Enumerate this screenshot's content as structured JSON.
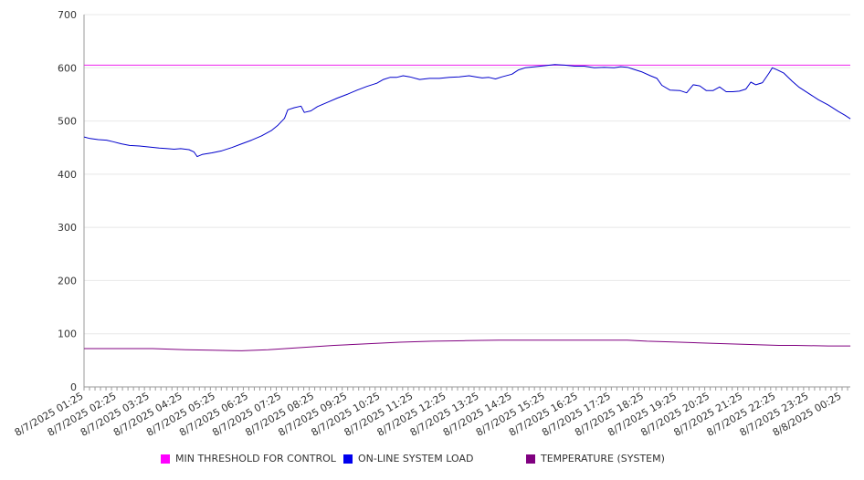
{
  "chart_data": {
    "type": "line",
    "ylim": [
      0,
      700
    ],
    "yticks": [
      0,
      100,
      200,
      300,
      400,
      500,
      600,
      700
    ],
    "grid": true,
    "legend_position": "bottom",
    "x_tick_labels": [
      "8/7/2025 01:25",
      "8/7/2025 02:25",
      "8/7/2025 03:25",
      "8/7/2025 04:25",
      "8/7/2025 05:25",
      "8/7/2025 06:25",
      "8/7/2025 07:25",
      "8/7/2025 08:25",
      "8/7/2025 09:25",
      "8/7/2025 10:25",
      "8/7/2025 11:25",
      "8/7/2025 12:25",
      "8/7/2025 13:25",
      "8/7/2025 14:25",
      "8/7/2025 15:25",
      "8/7/2025 16:25",
      "8/7/2025 17:25",
      "8/7/2025 18:25",
      "8/7/2025 19:25",
      "8/7/2025 20:25",
      "8/7/2025 21:25",
      "8/7/2025 22:25",
      "8/7/2025 23:25",
      "8/8/2025 00:25"
    ],
    "x_hours": [
      1.4167,
      24.6667
    ],
    "series": [
      {
        "name": "MIN THRESHOLD FOR CONTROL",
        "color": "#ee22ee",
        "legend_color": "#ff00ff",
        "points": [
          [
            1.4167,
            605
          ],
          [
            24.6667,
            605
          ]
        ]
      },
      {
        "name": "ON-LINE SYSTEM LOAD",
        "color": "#0000cc",
        "legend_color": "#0000ee",
        "points": [
          [
            1.42,
            470
          ],
          [
            1.6,
            467
          ],
          [
            1.85,
            465
          ],
          [
            2.1,
            464
          ],
          [
            2.3,
            461
          ],
          [
            2.55,
            457
          ],
          [
            2.8,
            454
          ],
          [
            3.1,
            453
          ],
          [
            3.4,
            451
          ],
          [
            3.7,
            449
          ],
          [
            3.95,
            448
          ],
          [
            4.15,
            447
          ],
          [
            4.35,
            448
          ],
          [
            4.6,
            446
          ],
          [
            4.75,
            442
          ],
          [
            4.85,
            433
          ],
          [
            5.0,
            437
          ],
          [
            5.3,
            440
          ],
          [
            5.6,
            444
          ],
          [
            5.9,
            450
          ],
          [
            6.2,
            457
          ],
          [
            6.5,
            464
          ],
          [
            6.8,
            472
          ],
          [
            7.1,
            482
          ],
          [
            7.3,
            492
          ],
          [
            7.5,
            505
          ],
          [
            7.6,
            521
          ],
          [
            7.8,
            525
          ],
          [
            8.0,
            528
          ],
          [
            8.1,
            516
          ],
          [
            8.3,
            519
          ],
          [
            8.5,
            527
          ],
          [
            8.8,
            535
          ],
          [
            9.1,
            543
          ],
          [
            9.4,
            550
          ],
          [
            9.7,
            558
          ],
          [
            10.0,
            565
          ],
          [
            10.3,
            571
          ],
          [
            10.5,
            578
          ],
          [
            10.7,
            582
          ],
          [
            10.9,
            582
          ],
          [
            11.1,
            585
          ],
          [
            11.3,
            583
          ],
          [
            11.6,
            578
          ],
          [
            11.9,
            580
          ],
          [
            12.2,
            580
          ],
          [
            12.5,
            582
          ],
          [
            12.8,
            583
          ],
          [
            13.1,
            585
          ],
          [
            13.3,
            583
          ],
          [
            13.5,
            581
          ],
          [
            13.7,
            582
          ],
          [
            13.9,
            579
          ],
          [
            14.1,
            583
          ],
          [
            14.4,
            588
          ],
          [
            14.6,
            596
          ],
          [
            14.8,
            600
          ],
          [
            15.1,
            602
          ],
          [
            15.4,
            604
          ],
          [
            15.7,
            606
          ],
          [
            16.0,
            605
          ],
          [
            16.3,
            603
          ],
          [
            16.6,
            603
          ],
          [
            16.9,
            600
          ],
          [
            17.2,
            601
          ],
          [
            17.5,
            600
          ],
          [
            17.7,
            602
          ],
          [
            17.9,
            601
          ],
          [
            18.1,
            597
          ],
          [
            18.35,
            592
          ],
          [
            18.6,
            585
          ],
          [
            18.8,
            580
          ],
          [
            18.95,
            567
          ],
          [
            19.2,
            558
          ],
          [
            19.5,
            557
          ],
          [
            19.7,
            553
          ],
          [
            19.9,
            568
          ],
          [
            20.1,
            566
          ],
          [
            20.3,
            557
          ],
          [
            20.5,
            557
          ],
          [
            20.7,
            564
          ],
          [
            20.9,
            555
          ],
          [
            21.1,
            555
          ],
          [
            21.3,
            556
          ],
          [
            21.5,
            560
          ],
          [
            21.65,
            573
          ],
          [
            21.8,
            568
          ],
          [
            22.0,
            572
          ],
          [
            22.2,
            590
          ],
          [
            22.3,
            600
          ],
          [
            22.45,
            596
          ],
          [
            22.65,
            590
          ],
          [
            22.9,
            575
          ],
          [
            23.1,
            564
          ],
          [
            23.4,
            552
          ],
          [
            23.7,
            540
          ],
          [
            24.0,
            530
          ],
          [
            24.3,
            518
          ],
          [
            24.5,
            511
          ],
          [
            24.67,
            504
          ]
        ]
      },
      {
        "name": "TEMPERATURE (SYSTEM)",
        "color": "#800080",
        "legend_color": "#800080",
        "points": [
          [
            1.42,
            72
          ],
          [
            2.5,
            72
          ],
          [
            3.5,
            72
          ],
          [
            4.5,
            70
          ],
          [
            5.3,
            69
          ],
          [
            6.2,
            68
          ],
          [
            7.0,
            70
          ],
          [
            8.0,
            74
          ],
          [
            9.0,
            78
          ],
          [
            10.0,
            81
          ],
          [
            11.0,
            84
          ],
          [
            12.0,
            86
          ],
          [
            13.0,
            87
          ],
          [
            14.0,
            88
          ],
          [
            15.0,
            88
          ],
          [
            16.0,
            88
          ],
          [
            17.0,
            88
          ],
          [
            17.9,
            88
          ],
          [
            18.5,
            86
          ],
          [
            19.5,
            84
          ],
          [
            20.5,
            82
          ],
          [
            21.5,
            80
          ],
          [
            22.5,
            78
          ],
          [
            23.0,
            78
          ],
          [
            24.0,
            77
          ],
          [
            24.67,
            77
          ]
        ]
      }
    ]
  }
}
